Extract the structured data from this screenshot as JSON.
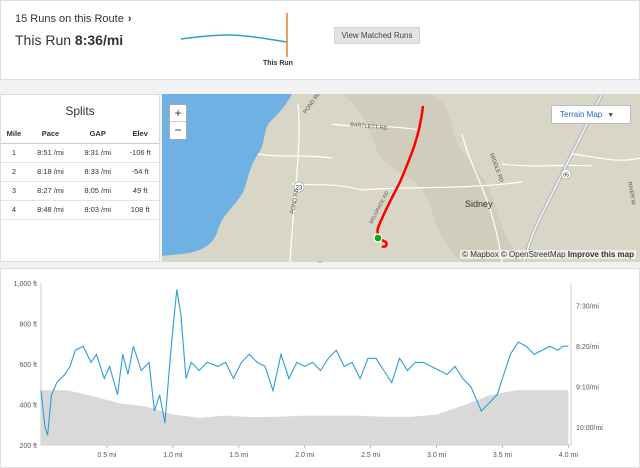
{
  "header": {
    "runs_link": "15 Runs on this Route",
    "this_run_prefix": "This Run",
    "this_run_pace": "8:36/mi",
    "spark_label": "This Run",
    "view_matched_label": "View Matched Runs"
  },
  "splits": {
    "title": "Splits",
    "columns": [
      "Mile",
      "Pace",
      "GAP",
      "Elev"
    ],
    "rows": [
      [
        "1",
        "8:51 /mi",
        "9:31 /mi",
        "-106 ft"
      ],
      [
        "2",
        "8:18 /mi",
        "8:33 /mi",
        "-54 ft"
      ],
      [
        "3",
        "8:27 /mi",
        "8:05 /mi",
        "49 ft"
      ],
      [
        "4",
        "8:48 /mi",
        "8:03 /mi",
        "108 ft"
      ]
    ]
  },
  "map": {
    "zoom_in": "+",
    "zoom_out": "−",
    "style_selector": "Terrain Map",
    "labels": {
      "bartlett": "BARTLETT RD",
      "pond_top": "POND RD",
      "pond_side": "POND RD",
      "route_23": "23",
      "route_95": "95",
      "middle_rd": "MIDDLE RD",
      "sidney": "Sidney",
      "belgrade": "BELGRADE RD",
      "river": "RIVER W"
    },
    "attribution_mapbox": "© Mapbox",
    "attribution_osm": "© OpenStreetMap",
    "attribution_improve": "Improve this map",
    "colors": {
      "water": "#6fb1e3",
      "land": "#d8d6c6",
      "route": "#ff0000",
      "start": "#1aa31a"
    }
  },
  "chart_data": {
    "type": "line",
    "x_ticks": [
      "0.5 mi",
      "1.0 mi",
      "1.5 mi",
      "2.0 mi",
      "2.5 mi",
      "3.0 mi",
      "3.5 mi",
      "4.0 mi"
    ],
    "x_tick_values": [
      0.5,
      1.0,
      1.5,
      2.0,
      2.5,
      3.0,
      3.5,
      4.0
    ],
    "xlim": [
      0,
      4.02
    ],
    "y_left_ticks": [
      "200 ft",
      "400 ft",
      "600 ft",
      "800 ft",
      "1,000 ft"
    ],
    "y_left_values": [
      200,
      400,
      600,
      800,
      1000
    ],
    "ylim_left": [
      200,
      1000
    ],
    "y_right_ticks": [
      "7:30/mi",
      "8:20/mi",
      "9:10/mi",
      "10:00/mi"
    ],
    "y_right_values_sec": [
      450,
      500,
      550,
      600
    ],
    "ylim_right_sec": [
      422,
      622
    ],
    "series": [
      {
        "type": "area",
        "color": "#d9d9d9",
        "x": [
          0,
          0.2,
          0.4,
          0.6,
          0.8,
          1.0,
          1.2,
          1.4,
          1.6,
          1.8,
          2.0,
          2.2,
          2.4,
          2.6,
          2.8,
          3.0,
          3.2,
          3.4,
          3.6,
          3.8,
          4.0
        ],
        "values": [
          470,
          470,
          440,
          405,
          390,
          350,
          335,
          345,
          338,
          340,
          345,
          345,
          345,
          340,
          340,
          350,
          395,
          445,
          470,
          470,
          470
        ]
      },
      {
        "type": "line",
        "color": "#2b9fd8",
        "x": [
          0,
          0.03,
          0.05,
          0.08,
          0.12,
          0.18,
          0.22,
          0.26,
          0.32,
          0.38,
          0.42,
          0.48,
          0.52,
          0.58,
          0.62,
          0.66,
          0.7,
          0.76,
          0.82,
          0.86,
          0.9,
          0.94,
          0.98,
          1.0,
          1.03,
          1.06,
          1.1,
          1.14,
          1.2,
          1.26,
          1.34,
          1.4,
          1.46,
          1.52,
          1.58,
          1.64,
          1.7,
          1.76,
          1.82,
          1.88,
          1.94,
          2.0,
          2.06,
          2.12,
          2.18,
          2.24,
          2.3,
          2.36,
          2.42,
          2.48,
          2.54,
          2.6,
          2.66,
          2.72,
          2.78,
          2.84,
          2.9,
          2.96,
          3.02,
          3.08,
          3.14,
          3.2,
          3.26,
          3.3,
          3.34,
          3.4,
          3.46,
          3.5,
          3.56,
          3.62,
          3.68,
          3.74,
          3.8,
          3.86,
          3.92,
          3.96,
          4.0
        ],
        "values": [
          555,
          600,
          610,
          560,
          545,
          535,
          525,
          505,
          500,
          520,
          510,
          540,
          525,
          560,
          510,
          535,
          500,
          530,
          520,
          580,
          560,
          595,
          515,
          480,
          430,
          460,
          540,
          520,
          530,
          520,
          525,
          520,
          540,
          520,
          510,
          520,
          525,
          555,
          510,
          540,
          520,
          525,
          520,
          530,
          515,
          505,
          525,
          520,
          540,
          515,
          515,
          530,
          545,
          515,
          530,
          520,
          520,
          525,
          530,
          535,
          525,
          540,
          550,
          565,
          580,
          570,
          560,
          540,
          510,
          495,
          500,
          510,
          505,
          500,
          505,
          500,
          500
        ]
      }
    ]
  }
}
